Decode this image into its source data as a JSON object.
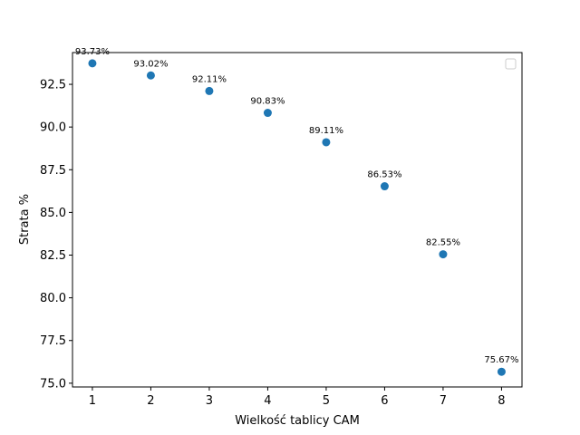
{
  "chart_data": {
    "type": "scatter",
    "xlabel": "Wielkość tablicy CAM",
    "ylabel": "Strata %",
    "xlim": [
      0.66,
      8.35
    ],
    "ylim": [
      74.78,
      94.36
    ],
    "xticks": [
      1,
      2,
      3,
      4,
      5,
      6,
      7,
      8
    ],
    "yticks": [
      75.0,
      77.5,
      80.0,
      82.5,
      85.0,
      87.5,
      90.0,
      92.5
    ],
    "ytick_labels": [
      "75.0",
      "77.5",
      "80.0",
      "82.5",
      "85.0",
      "87.5",
      "90.0",
      "92.5"
    ],
    "legend": {
      "position": "top-right",
      "entries": []
    },
    "grid": false,
    "series": [
      {
        "color": "#1f77b4",
        "x": [
          1,
          2,
          3,
          4,
          5,
          6,
          7,
          8
        ],
        "y": [
          93.73,
          93.02,
          92.11,
          90.83,
          89.11,
          86.53,
          82.55,
          75.67
        ],
        "labels": [
          "93.73%",
          "93.02%",
          "92.11%",
          "90.83%",
          "89.11%",
          "86.53%",
          "82.55%",
          "75.67%"
        ]
      }
    ]
  }
}
